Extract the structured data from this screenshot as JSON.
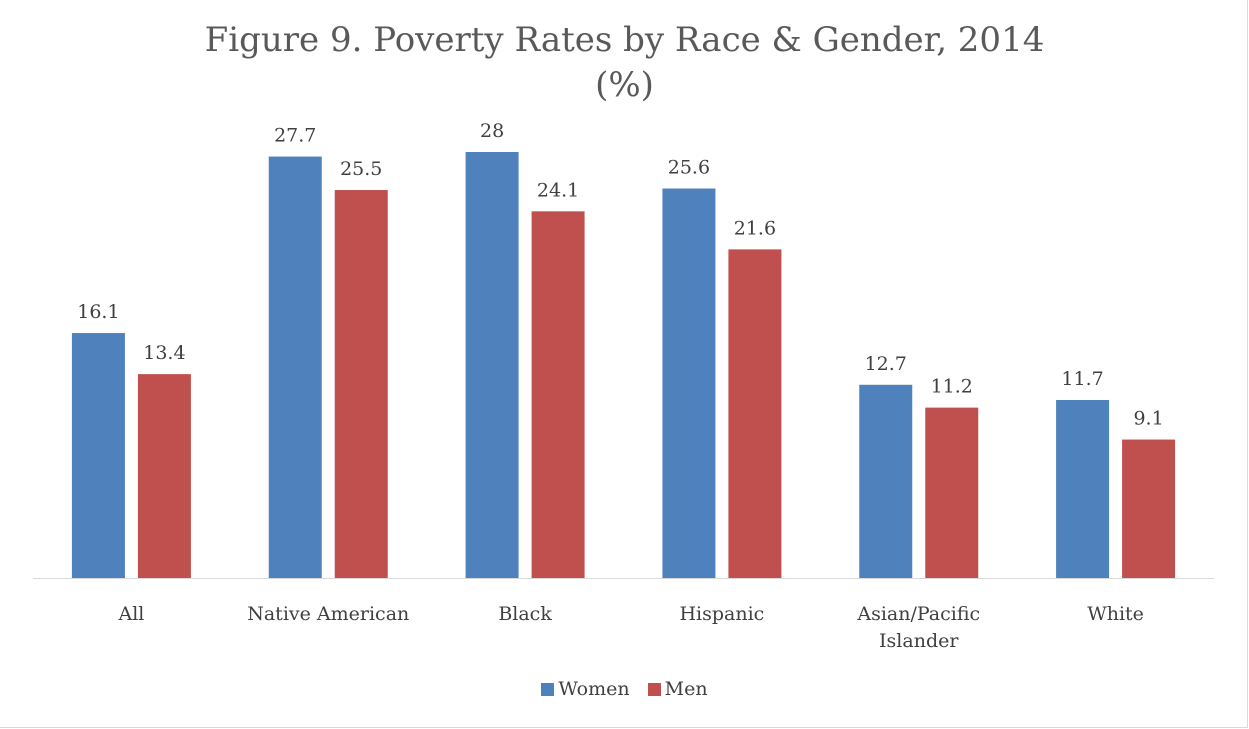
{
  "chart_data": {
    "type": "bar",
    "title_line1": "Figure 9.  Poverty Rates by Race & Gender, 2014",
    "title_line2": "(%)",
    "categories": [
      [
        "All"
      ],
      [
        "Native American"
      ],
      [
        "Black"
      ],
      [
        "Hispanic"
      ],
      [
        "Asian/Pacific",
        "Islander"
      ],
      [
        "White"
      ]
    ],
    "series": [
      {
        "name": "Women",
        "color": "#4f81bd",
        "values": [
          16.1,
          27.7,
          28,
          25.6,
          12.7,
          11.7
        ],
        "labels": [
          "16.1",
          "27.7",
          "28",
          "25.6",
          "12.7",
          "11.7"
        ]
      },
      {
        "name": "Men",
        "color": "#c0504d",
        "values": [
          13.4,
          25.5,
          24.1,
          21.6,
          11.2,
          9.1
        ],
        "labels": [
          "13.4",
          "25.5",
          "24.1",
          "21.6",
          "11.2",
          "9.1"
        ]
      }
    ],
    "ylim": [
      0,
      30
    ],
    "grid": false,
    "y_axis_visible": false,
    "legend_position": "bottom",
    "xlabel": "",
    "ylabel": ""
  }
}
